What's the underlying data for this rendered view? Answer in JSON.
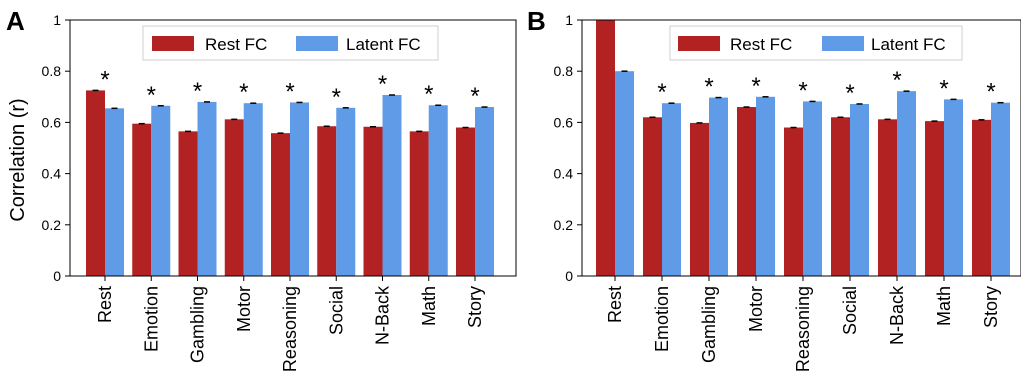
{
  "colors": {
    "rest": "#b22222",
    "latent": "#5f9be6",
    "axis": "#000000",
    "error": "#000000"
  },
  "chart_data": [
    {
      "panel_label": "A",
      "type": "bar",
      "ylabel": "Correlation (r)",
      "ylim": [
        0,
        1
      ],
      "yticks": [
        "0",
        "0.2",
        "0.4",
        "0.6",
        "0.8",
        "1"
      ],
      "grid": false,
      "legend": {
        "position": "top-center",
        "entries": [
          "Rest FC",
          "Latent FC"
        ]
      },
      "categories": [
        "Rest",
        "Emotion",
        "Gambling",
        "Motor",
        "Reasoning",
        "Social",
        "N-Back",
        "Math",
        "Story"
      ],
      "series": [
        {
          "name": "Rest FC",
          "values": [
            0.725,
            0.595,
            0.565,
            0.612,
            0.558,
            0.585,
            0.583,
            0.565,
            0.58
          ]
        },
        {
          "name": "Latent FC",
          "values": [
            0.655,
            0.665,
            0.68,
            0.675,
            0.678,
            0.657,
            0.707,
            0.667,
            0.66
          ]
        }
      ],
      "annotations": [
        "*",
        "*",
        "*",
        "*",
        "*",
        "*",
        "*",
        "*",
        "*"
      ]
    },
    {
      "panel_label": "B",
      "type": "bar",
      "ylabel": "",
      "ylim": [
        0,
        1
      ],
      "yticks": [
        "0",
        "0.2",
        "0.4",
        "0.6",
        "0.8",
        "1"
      ],
      "grid": false,
      "legend": {
        "position": "top-right",
        "entries": [
          "Rest FC",
          "Latent FC"
        ]
      },
      "categories": [
        "Rest",
        "Emotion",
        "Gambling",
        "Motor",
        "Reasoning",
        "Social",
        "N-Back",
        "Math",
        "Story"
      ],
      "series": [
        {
          "name": "Rest FC",
          "values": [
            1.0,
            0.62,
            0.598,
            0.66,
            0.58,
            0.62,
            0.612,
            0.605,
            0.61
          ]
        },
        {
          "name": "Latent FC",
          "values": [
            0.8,
            0.675,
            0.697,
            0.7,
            0.682,
            0.672,
            0.722,
            0.69,
            0.677
          ]
        }
      ],
      "annotations": [
        "",
        "*",
        "*",
        "*",
        "*",
        "*",
        "*",
        "*",
        "*"
      ]
    }
  ]
}
